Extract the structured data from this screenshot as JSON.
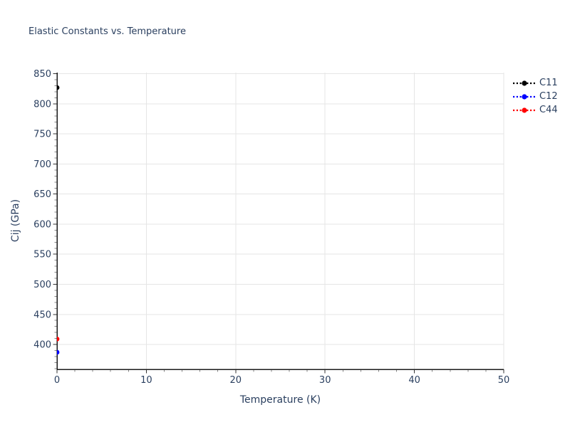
{
  "window": {
    "background": "#ffffff"
  },
  "colors": {
    "text": "#2a3f5f",
    "grid": "#e5e5e5",
    "axis_line": "#1a1a1a",
    "major_tick": "#333333",
    "minor_tick": "#888888"
  },
  "chart_data": {
    "type": "scatter",
    "title": "Elastic Constants vs. Temperature",
    "xlabel": "Temperature (K)",
    "ylabel": "Cij (GPa)",
    "xlim": [
      0,
      50
    ],
    "ylim": [
      358.6,
      852
    ],
    "x_major_ticks": [
      0,
      10,
      20,
      30,
      40,
      50
    ],
    "x_minor_step": 2,
    "y_major_ticks": [
      400,
      450,
      500,
      550,
      600,
      650,
      700,
      750,
      800,
      850
    ],
    "y_minor_step": 10,
    "grid": true,
    "legend_position": "top-right-outside",
    "series": [
      {
        "name": "C11",
        "color": "#000000",
        "mode": "lines+markers",
        "line_style": "dot",
        "x": [
          0
        ],
        "y": [
          827
        ]
      },
      {
        "name": "C12",
        "color": "#0000ff",
        "mode": "lines+markers",
        "line_style": "dot",
        "x": [
          0
        ],
        "y": [
          387
        ]
      },
      {
        "name": "C44",
        "color": "#ff0000",
        "mode": "lines+markers",
        "line_style": "dot",
        "x": [
          0
        ],
        "y": [
          409
        ]
      }
    ]
  }
}
